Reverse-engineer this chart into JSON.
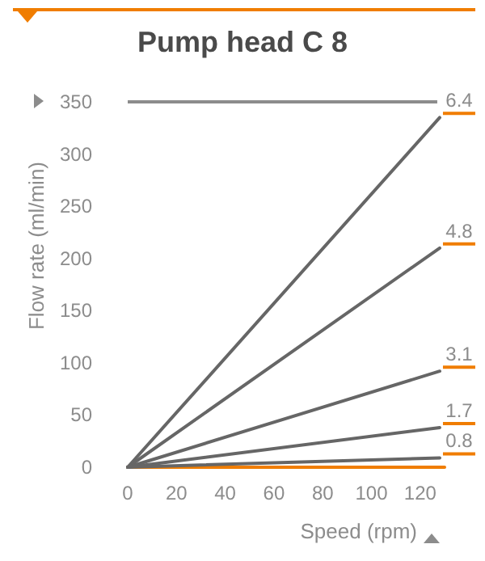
{
  "chart_data": {
    "type": "line",
    "title": "Pump head C 8",
    "xlabel": "Speed (rpm)",
    "ylabel": "Flow rate (ml/min)",
    "xlim": [
      0,
      130
    ],
    "xticks": [
      0,
      20,
      40,
      60,
      80,
      100,
      120
    ],
    "ylim": [
      0,
      350
    ],
    "yticks": [
      0,
      50,
      100,
      150,
      200,
      250,
      300,
      350
    ],
    "x": [
      0,
      128
    ],
    "grid": false,
    "legend": false,
    "marker": "none",
    "line_style": "solid",
    "ref_lines": [
      {
        "axis": "y",
        "value": 350,
        "color": "#8c8c8c"
      }
    ],
    "series": [
      {
        "name": "6.4",
        "color": "#666666",
        "values": [
          0,
          335
        ]
      },
      {
        "name": "4.8",
        "color": "#666666",
        "values": [
          0,
          210
        ]
      },
      {
        "name": "3.1",
        "color": "#666666",
        "values": [
          0,
          92
        ]
      },
      {
        "name": "1.7",
        "color": "#666666",
        "values": [
          0,
          38
        ]
      },
      {
        "name": "0.8",
        "color": "#666666",
        "values": [
          0,
          9
        ]
      }
    ]
  }
}
